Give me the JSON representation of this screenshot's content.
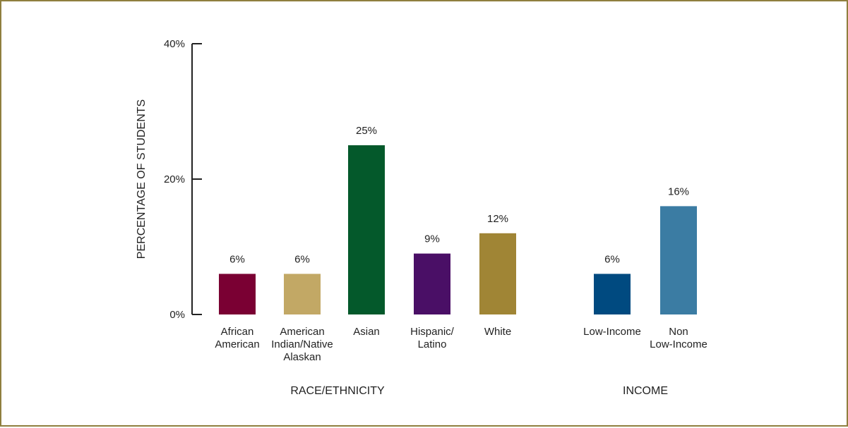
{
  "chart_data": {
    "type": "bar",
    "ylabel": "PERCENTAGE OF STUDENTS",
    "ylim": [
      0,
      40
    ],
    "yticks": [
      0,
      20,
      40
    ],
    "ytick_labels": [
      "0%",
      "20%",
      "40%"
    ],
    "grid": false,
    "groups": [
      {
        "label": "RACE/ETHNICITY",
        "bars": [
          {
            "category": [
              "African",
              "American"
            ],
            "value": 6,
            "label": "6%",
            "color": "#7a0033"
          },
          {
            "category": [
              "American",
              "Indian/Native",
              "Alaskan"
            ],
            "value": 6,
            "label": "6%",
            "color": "#c2a865"
          },
          {
            "category": [
              "Asian"
            ],
            "value": 25,
            "label": "25%",
            "color": "#04592b"
          },
          {
            "category": [
              "Hispanic/",
              "Latino"
            ],
            "value": 9,
            "label": "9%",
            "color": "#4a0f66"
          },
          {
            "category": [
              "White"
            ],
            "value": 12,
            "label": "12%",
            "color": "#a08535"
          }
        ]
      },
      {
        "label": "INCOME",
        "bars": [
          {
            "category": [
              "Low-Income"
            ],
            "value": 6,
            "label": "6%",
            "color": "#004a80"
          },
          {
            "category": [
              "Non",
              "Low-Income"
            ],
            "value": 16,
            "label": "16%",
            "color": "#3b7ca3"
          }
        ]
      }
    ]
  }
}
